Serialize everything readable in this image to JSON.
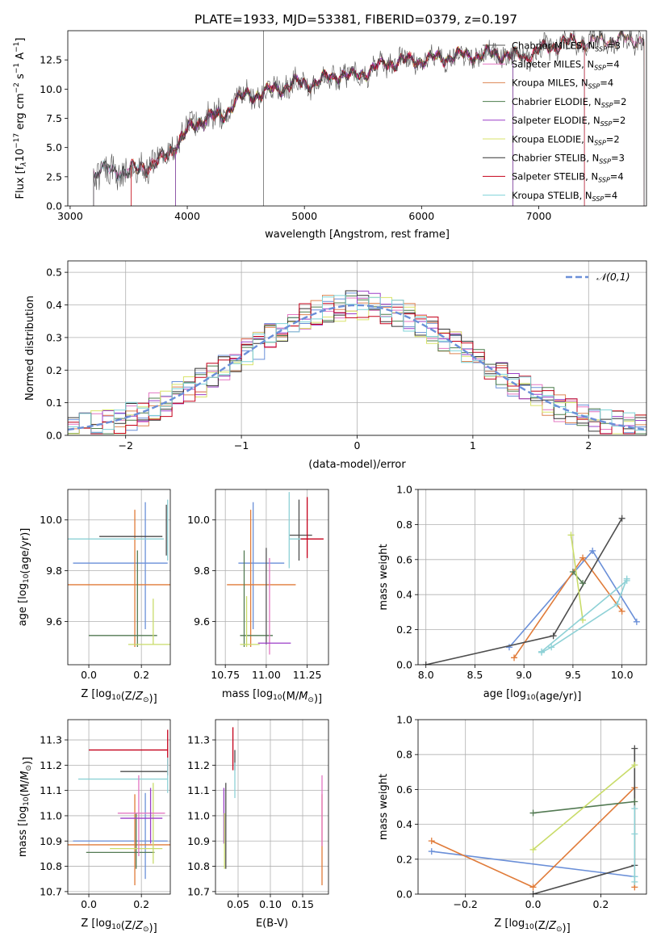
{
  "figure": {
    "title": "PLATE=1933, MJD=53381, FIBERID=0379, z=0.197"
  },
  "colors": {
    "CM": "#555555",
    "SM": "#e377c2",
    "KM": "#dd8452",
    "CE": "#4c7d4c",
    "SE": "#9b3fc8",
    "KE": "#d9e36a",
    "CS": "#333333",
    "SS": "#c4001a",
    "KS": "#7fd3d8",
    "p1": "#6a8fd8",
    "p2": "#e07b39",
    "p3": "#4d4d4d",
    "p4": "#537a53",
    "p5": "#c9dc6a",
    "p6": "#8ed1d6"
  },
  "chart_data": [
    {
      "id": "spectrum",
      "type": "line",
      "xlabel": "wavelength [Angstrom, rest frame]",
      "ylabel_parts": [
        "Flux [f",
        "λ",
        "10",
        "−17",
        " erg cm",
        "−2",
        " s",
        "−1",
        " A",
        "−1",
        "]"
      ],
      "xlim": [
        2980,
        7920
      ],
      "ylim": [
        0,
        15
      ],
      "xticks": [
        3000,
        4000,
        5000,
        6000,
        7000
      ],
      "yticks": [
        0.0,
        2.5,
        5.0,
        7.5,
        10.0,
        12.5
      ],
      "xticklabels": [
        "3000",
        "4000",
        "5000",
        "6000",
        "7000"
      ],
      "yticklabels": [
        "0.0",
        "2.5",
        "5.0",
        "7.5",
        "10.0",
        "12.5"
      ],
      "continuum": {
        "x": [
          3200,
          3300,
          3400,
          3500,
          3600,
          3700,
          3800,
          3900,
          4000,
          4100,
          4200,
          4300,
          4400,
          4500,
          4600,
          4700,
          4800,
          4900,
          5000,
          5100,
          5200,
          5300,
          5400,
          5500,
          5600,
          5700,
          5800,
          5900,
          6000,
          6100,
          6200,
          6300,
          6400,
          6500,
          6600,
          6700,
          6800,
          6900,
          7000,
          7100,
          7200,
          7300,
          7400,
          7500,
          7600,
          7700,
          7800,
          7900
        ],
        "y": [
          2.8,
          3.1,
          3.0,
          3.0,
          3.2,
          3.6,
          4.0,
          5.2,
          6.4,
          7.2,
          7.7,
          7.5,
          9.0,
          9.4,
          9.6,
          9.8,
          10.1,
          10.5,
          10.4,
          10.6,
          10.9,
          11.3,
          11.0,
          11.4,
          11.8,
          12.2,
          12.4,
          12.4,
          12.5,
          12.6,
          12.7,
          12.8,
          12.9,
          12.9,
          13.0,
          13.0,
          12.8,
          12.9,
          13.3,
          13.6,
          14.0,
          14.0,
          14.0,
          14.1,
          14.2,
          14.3,
          14.2,
          14.3
        ]
      },
      "legend": [
        {
          "key": "CM",
          "label": "Chabrier MILES, N",
          "sub": "SSP",
          "tail": "=3"
        },
        {
          "key": "SM",
          "label": "Salpeter MILES, N",
          "sub": "SSP",
          "tail": "=4"
        },
        {
          "key": "KM",
          "label": "Kroupa MILES, N",
          "sub": "SSP",
          "tail": "=4"
        },
        {
          "key": "CE",
          "label": "Chabrier ELODIE, N",
          "sub": "SSP",
          "tail": "=2"
        },
        {
          "key": "SE",
          "label": "Salpeter ELODIE, N",
          "sub": "SSP",
          "tail": "=2"
        },
        {
          "key": "KE",
          "label": "Kroupa ELODIE, N",
          "sub": "SSP",
          "tail": "=2"
        },
        {
          "key": "CS",
          "label": "Chabrier STELIB, N",
          "sub": "SSP",
          "tail": "=3"
        },
        {
          "key": "SS",
          "label": "Salpeter STELIB, N",
          "sub": "SSP",
          "tail": "=4"
        },
        {
          "key": "KS",
          "label": "Kroupa STELIB, N",
          "sub": "SSP",
          "tail": "=4"
        }
      ]
    },
    {
      "id": "residuals",
      "type": "histogram",
      "xlabel": "(data-model)/error",
      "ylabel": "Normed distribution",
      "xlim": [
        -2.5,
        2.5
      ],
      "ylim": [
        0,
        0.535
      ],
      "xticks": [
        -2,
        -1,
        0,
        1,
        2
      ],
      "xticklabels": [
        "−2",
        "−1",
        "0",
        "1",
        "2"
      ],
      "yticks": [
        0.0,
        0.1,
        0.2,
        0.3,
        0.4,
        0.5
      ],
      "yticklabels": [
        "0.0",
        "0.1",
        "0.2",
        "0.3",
        "0.4",
        "0.5"
      ],
      "bins": [
        -2.5,
        2.5,
        50
      ],
      "series_keys": [
        "CM",
        "SM",
        "KM",
        "CE",
        "SE",
        "KE",
        "CS",
        "SS",
        "KS"
      ],
      "gaussian_label": "𝒩(0,1)",
      "gaussian_color": "#6a8fd8"
    },
    {
      "id": "age_vs_Z",
      "type": "errorbar",
      "xlabel": "Z [log10(Z/Z⊙)]",
      "ylabel": "age  [log10(age/yr)]",
      "xlim": [
        -0.08,
        0.31
      ],
      "ylim": [
        9.43,
        10.12
      ],
      "xticks": [
        0.0,
        0.2
      ],
      "xticklabels": [
        "0.0",
        "0.2"
      ],
      "yticks": [
        9.6,
        9.8,
        10.0
      ],
      "yticklabels": [
        "9.6",
        "9.8",
        "10.0"
      ],
      "points": [
        {
          "color": "p1",
          "x": 0.12,
          "xerr": 0.18,
          "y": 9.83,
          "yerr": 0.0
        },
        {
          "color": "p1",
          "x": 0.215,
          "xerr": 0.0,
          "y": 9.82,
          "yerr": 0.25
        },
        {
          "color": "p2",
          "x": 0.06,
          "xerr": 0.25,
          "y": 9.745,
          "yerr": 0.0
        },
        {
          "color": "p2",
          "x": 0.175,
          "xerr": 0.0,
          "y": 9.77,
          "yerr": 0.27
        },
        {
          "color": "p3",
          "x": 0.16,
          "xerr": 0.12,
          "y": 9.935,
          "yerr": 0.0
        },
        {
          "color": "p3",
          "x": 0.295,
          "xerr": 0.0,
          "y": 9.96,
          "yerr": 0.1
        },
        {
          "color": "p4",
          "x": 0.13,
          "xerr": 0.13,
          "y": 9.545,
          "yerr": 0.0
        },
        {
          "color": "p4",
          "x": 0.185,
          "xerr": 0.0,
          "y": 9.69,
          "yerr": 0.19
        },
        {
          "color": "p5",
          "x": 0.24,
          "xerr": 0.09,
          "y": 9.51,
          "yerr": 0.0
        },
        {
          "color": "p5",
          "x": 0.245,
          "xerr": 0.0,
          "y": 9.6,
          "yerr": 0.09
        },
        {
          "color": "p6",
          "x": 0.085,
          "xerr": 0.2,
          "y": 9.925,
          "yerr": 0.0
        },
        {
          "color": "p6",
          "x": 0.3,
          "xerr": 0.0,
          "y": 9.96,
          "yerr": 0.12
        }
      ]
    },
    {
      "id": "age_vs_mass",
      "type": "errorbar",
      "xlabel": "mass [log10(M/M⊙)]",
      "ylabel": "",
      "xlim": [
        10.69,
        11.38
      ],
      "ylim": [
        9.43,
        10.12
      ],
      "xticks": [
        10.75,
        11.0,
        11.25
      ],
      "xticklabels": [
        "10.75",
        "11.00",
        "11.25"
      ],
      "yticks": [
        9.6,
        9.8,
        10.0
      ],
      "yticklabels": [
        "9.6",
        "9.8",
        "10.0"
      ],
      "points": [
        {
          "color": "p1",
          "x": 10.97,
          "xerr": 0.14,
          "y": 9.83,
          "yerr": 0.0
        },
        {
          "color": "p1",
          "x": 10.92,
          "xerr": 0.0,
          "y": 9.82,
          "yerr": 0.25
        },
        {
          "color": "p2",
          "x": 10.97,
          "xerr": 0.21,
          "y": 9.745,
          "yerr": 0.0
        },
        {
          "color": "p2",
          "x": 10.905,
          "xerr": 0.0,
          "y": 9.77,
          "yerr": 0.27
        },
        {
          "color": "p3",
          "x": 11.21,
          "xerr": 0.07,
          "y": 9.94,
          "yerr": 0.0
        },
        {
          "color": "p3",
          "x": 11.2,
          "xerr": 0.0,
          "y": 9.96,
          "yerr": 0.12
        },
        {
          "color": "p4",
          "x": 10.94,
          "xerr": 0.1,
          "y": 9.545,
          "yerr": 0.0
        },
        {
          "color": "p4",
          "x": 10.865,
          "xerr": 0.0,
          "y": 9.69,
          "yerr": 0.19
        },
        {
          "color": "p5",
          "x": 10.9,
          "xerr": 0.06,
          "y": 9.51,
          "yerr": 0.0
        },
        {
          "color": "p5",
          "x": 10.88,
          "xerr": 0.0,
          "y": 9.6,
          "yerr": 0.1
        },
        {
          "color": "p6",
          "x": 11.2,
          "xerr": 0.06,
          "y": 9.925,
          "yerr": 0.0
        },
        {
          "color": "p6",
          "x": 11.14,
          "xerr": 0.0,
          "y": 9.96,
          "yerr": 0.15
        },
        {
          "color": "CM",
          "x": 11.0,
          "xerr": 0.0,
          "y": 9.7,
          "yerr": 0.19
        },
        {
          "color": "SM",
          "x": 11.02,
          "xerr": 0.0,
          "y": 9.66,
          "yerr": 0.19
        },
        {
          "color": "SE",
          "x": 11.05,
          "xerr": 0.1,
          "y": 9.515,
          "yerr": 0.0
        },
        {
          "color": "SS",
          "x": 11.25,
          "xerr": 0.0,
          "y": 9.97,
          "yerr": 0.12
        },
        {
          "color": "SS",
          "x": 11.28,
          "xerr": 0.07,
          "y": 9.925,
          "yerr": 0.0
        }
      ]
    },
    {
      "id": "mass_weight_vs_age",
      "type": "line",
      "xlabel": "age  [log10(age/yr)]",
      "ylabel": "mass weight",
      "xlim": [
        7.92,
        10.25
      ],
      "ylim": [
        0.0,
        1.0
      ],
      "xticks": [
        8.0,
        8.5,
        9.0,
        9.5,
        10.0
      ],
      "xticklabels": [
        "8.0",
        "8.5",
        "9.0",
        "9.5",
        "10.0"
      ],
      "yticks": [
        0.0,
        0.2,
        0.4,
        0.6,
        0.8,
        1.0
      ],
      "yticklabels": [
        "0.0",
        "0.2",
        "0.4",
        "0.6",
        "0.8",
        "1.0"
      ],
      "series": [
        {
          "color": "p1",
          "x": [
            8.85,
            9.7,
            10.15
          ],
          "y": [
            0.1,
            0.65,
            0.245
          ]
        },
        {
          "color": "p2",
          "x": [
            8.9,
            9.6,
            10.0
          ],
          "y": [
            0.04,
            0.61,
            0.305
          ]
        },
        {
          "color": "p3",
          "x": [
            8.0,
            9.3,
            10.0
          ],
          "y": [
            0.0,
            0.165,
            0.835
          ]
        },
        {
          "color": "p4",
          "x": [
            9.5,
            9.6
          ],
          "y": [
            0.53,
            0.465
          ]
        },
        {
          "color": "p5",
          "x": [
            9.48,
            9.6
          ],
          "y": [
            0.74,
            0.255
          ]
        },
        {
          "color": "p6",
          "x": [
            9.18,
            9.28,
            9.95,
            10.05
          ],
          "y": [
            0.07,
            0.1,
            0.345,
            0.49
          ]
        },
        {
          "color": "p6",
          "x": [
            9.18,
            10.05
          ],
          "y": [
            0.075,
            0.48
          ]
        }
      ]
    },
    {
      "id": "mass_vs_Z",
      "type": "errorbar",
      "xlabel": "Z [log10(Z/Z⊙)]",
      "ylabel": "mass [log10(M/M⊙)]",
      "xlim": [
        -0.08,
        0.31
      ],
      "ylim": [
        10.69,
        11.38
      ],
      "xticks": [
        0.0,
        0.2
      ],
      "xticklabels": [
        "0.0",
        "0.2"
      ],
      "yticks": [
        10.7,
        10.8,
        10.9,
        11.0,
        11.1,
        11.2,
        11.3
      ],
      "yticklabels": [
        "10.7",
        "10.8",
        "10.9",
        "11.0",
        "11.1",
        "11.2",
        "11.3"
      ],
      "points": [
        {
          "color": "p1",
          "x": 0.12,
          "xerr": 0.18,
          "y": 10.9,
          "yerr": 0.0
        },
        {
          "color": "p1",
          "x": 0.215,
          "xerr": 0.0,
          "y": 10.92,
          "yerr": 0.17
        },
        {
          "color": "p2",
          "x": 0.06,
          "xerr": 0.25,
          "y": 10.885,
          "yerr": 0.0
        },
        {
          "color": "p2",
          "x": 0.175,
          "xerr": 0.0,
          "y": 10.905,
          "yerr": 0.18
        },
        {
          "color": "SS",
          "x": 0.15,
          "xerr": 0.15,
          "y": 11.26,
          "yerr": 0.0
        },
        {
          "color": "SS",
          "x": 0.3,
          "xerr": 0.0,
          "y": 11.25,
          "yerr": 0.09
        },
        {
          "color": "p3",
          "x": 0.21,
          "xerr": 0.09,
          "y": 11.175,
          "yerr": 0.0
        },
        {
          "color": "p4",
          "x": 0.12,
          "xerr": 0.13,
          "y": 10.855,
          "yerr": 0.0
        },
        {
          "color": "p4",
          "x": 0.18,
          "xerr": 0.0,
          "y": 10.9,
          "yerr": 0.11
        },
        {
          "color": "p5",
          "x": 0.18,
          "xerr": 0.1,
          "y": 10.87,
          "yerr": 0.0
        },
        {
          "color": "p5",
          "x": 0.245,
          "xerr": 0.0,
          "y": 10.97,
          "yerr": 0.16
        },
        {
          "color": "p6",
          "x": 0.13,
          "xerr": 0.17,
          "y": 11.145,
          "yerr": 0.0
        },
        {
          "color": "p6",
          "x": 0.3,
          "xerr": 0.0,
          "y": 11.16,
          "yerr": 0.07
        },
        {
          "color": "SM",
          "x": 0.19,
          "xerr": 0.0,
          "y": 11.0,
          "yerr": 0.16
        },
        {
          "color": "SM",
          "x": 0.2,
          "xerr": 0.09,
          "y": 11.01,
          "yerr": 0.0
        },
        {
          "color": "SE",
          "x": 0.2,
          "xerr": 0.08,
          "y": 10.99,
          "yerr": 0.0
        },
        {
          "color": "SE",
          "x": 0.235,
          "xerr": 0.0,
          "y": 11.0,
          "yerr": 0.11
        }
      ]
    },
    {
      "id": "mass_vs_ebv",
      "type": "errorbar",
      "xlabel": "E(B-V)",
      "ylabel": "",
      "xlim": [
        0.015,
        0.19
      ],
      "ylim": [
        10.69,
        11.38
      ],
      "xticks": [
        0.05,
        0.1,
        0.15
      ],
      "xticklabels": [
        "0.05",
        "0.10",
        "0.15"
      ],
      "yticks": [
        10.7,
        10.8,
        10.9,
        11.0,
        11.1,
        11.2,
        11.3
      ],
      "yticklabels": [
        "10.7",
        "10.8",
        "10.9",
        "11.0",
        "11.1",
        "11.2",
        "11.3"
      ],
      "points": [
        {
          "color": "SS",
          "x": 0.042,
          "xerr": 0.0,
          "y": 11.265,
          "yerr": 0.085
        },
        {
          "color": "p3",
          "x": 0.045,
          "xerr": 0.0,
          "y": 11.22,
          "yerr": 0.04
        },
        {
          "color": "p6",
          "x": 0.045,
          "xerr": 0.0,
          "y": 11.14,
          "yerr": 0.07
        },
        {
          "color": "SE",
          "x": 0.028,
          "xerr": 0.0,
          "y": 11.0,
          "yerr": 0.11
        },
        {
          "color": "p3",
          "x": 0.031,
          "xerr": 0.0,
          "y": 10.96,
          "yerr": 0.17
        },
        {
          "color": "p5",
          "x": 0.029,
          "xerr": 0.0,
          "y": 10.9,
          "yerr": 0.11
        },
        {
          "color": "p2",
          "x": 0.18,
          "xerr": 0.0,
          "y": 10.905,
          "yerr": 0.18
        },
        {
          "color": "SM",
          "x": 0.18,
          "xerr": 0.0,
          "y": 11.02,
          "yerr": 0.14
        }
      ]
    },
    {
      "id": "mass_weight_vs_Z",
      "type": "line",
      "xlabel": "Z [log10(Z/Z⊙)]",
      "ylabel": "mass weight",
      "xlim": [
        -0.34,
        0.335
      ],
      "ylim": [
        0.0,
        1.0
      ],
      "xticks": [
        -0.2,
        0.0,
        0.2
      ],
      "xticklabels": [
        "−0.2",
        "0.0",
        "0.2"
      ],
      "yticks": [
        0.0,
        0.2,
        0.4,
        0.6,
        0.8,
        1.0
      ],
      "yticklabels": [
        "0.0",
        "0.2",
        "0.4",
        "0.6",
        "0.8",
        "1.0"
      ],
      "series": [
        {
          "color": "p1",
          "x": [
            -0.3,
            0.3
          ],
          "y": [
            0.245,
            0.1
          ]
        },
        {
          "color": "p2",
          "x": [
            -0.3,
            0.0,
            0.3,
            0.3
          ],
          "y": [
            0.305,
            0.04,
            0.61,
            0.04
          ]
        },
        {
          "color": "p3",
          "x": [
            0.0,
            0.3,
            0.3
          ],
          "y": [
            0.0,
            0.165,
            0.835
          ]
        },
        {
          "color": "p4",
          "x": [
            0.0,
            0.3
          ],
          "y": [
            0.465,
            0.53
          ]
        },
        {
          "color": "p5",
          "x": [
            0.0,
            0.3
          ],
          "y": [
            0.255,
            0.74
          ]
        },
        {
          "color": "p6",
          "x": [
            0.3,
            0.3,
            0.3,
            0.3
          ],
          "y": [
            0.07,
            0.345,
            0.49,
            0.1
          ]
        }
      ]
    }
  ]
}
